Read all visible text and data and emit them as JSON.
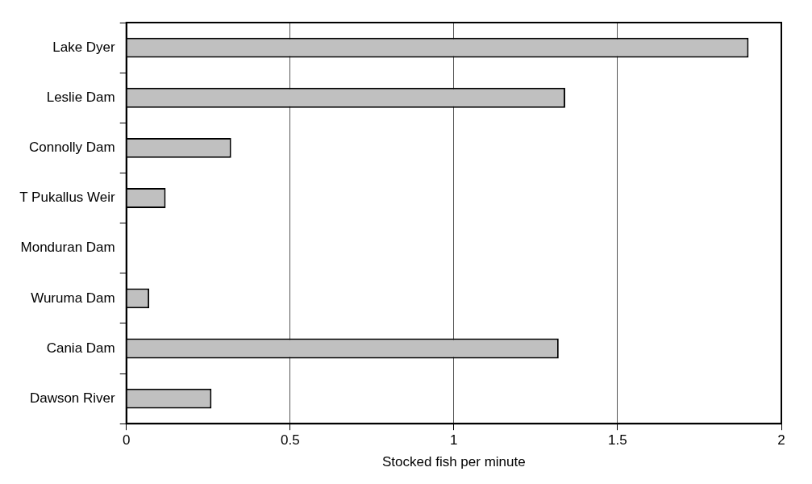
{
  "chart_data": {
    "type": "bar",
    "orientation": "horizontal",
    "xlabel": "Stocked fish per minute",
    "categories": [
      "Lake Dyer",
      "Leslie Dam",
      "Connolly Dam",
      "T Pukallus Weir",
      "Monduran Dam",
      "Wuruma Dam",
      "Cania Dam",
      "Dawson River"
    ],
    "values": [
      1.9,
      1.34,
      0.32,
      0.12,
      0,
      0.07,
      1.32,
      0.26
    ],
    "color": "#c0c0c0",
    "xlim": [
      0,
      2
    ],
    "xticks": [
      0,
      0.5,
      1,
      1.5,
      2
    ],
    "grid": "x",
    "legend": false
  }
}
